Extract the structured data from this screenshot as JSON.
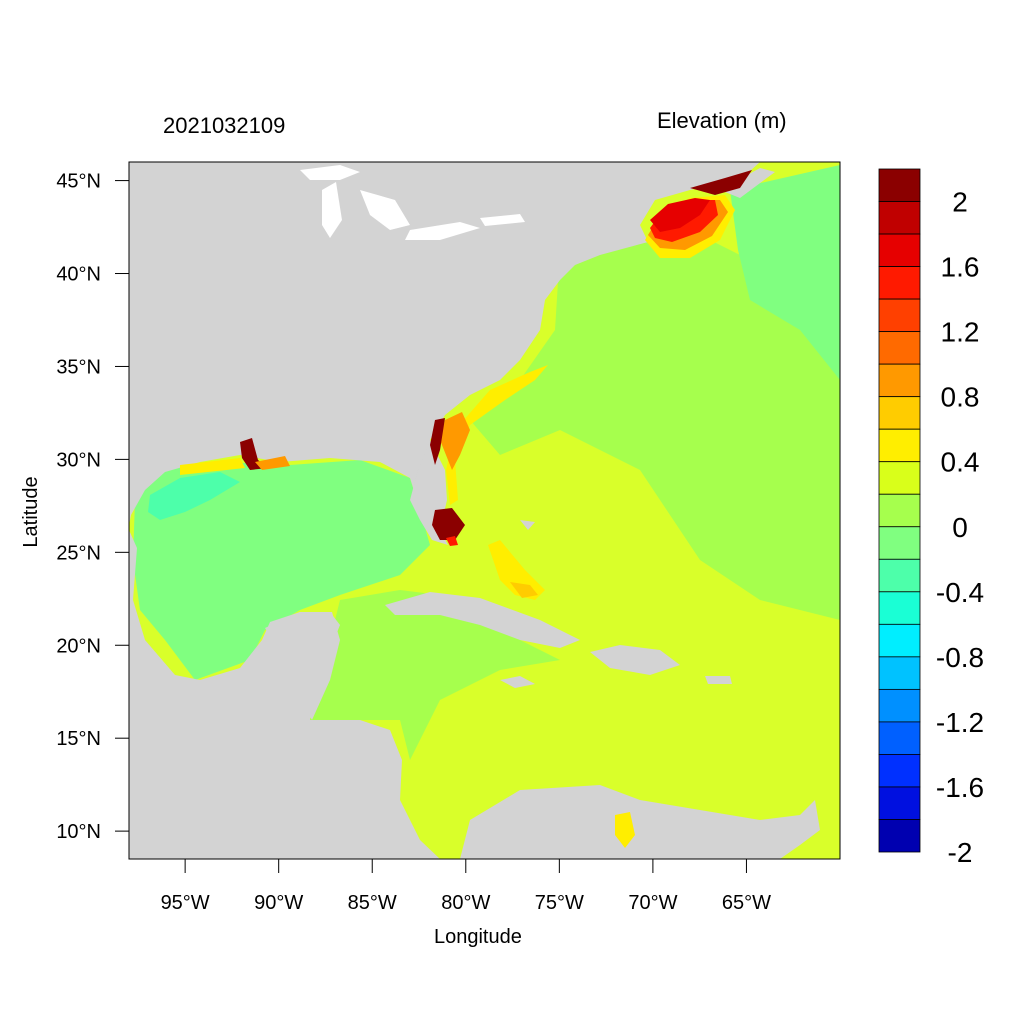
{
  "map": {
    "date_label": "2021032109",
    "variable_title": "Elevation (m)",
    "xlabel": "Longitude",
    "ylabel": "Latitude",
    "lon_range": [
      -98.0,
      -60.0
    ],
    "lat_range": [
      8.5,
      46.0
    ],
    "xticks": [
      {
        "value": -95,
        "label": "95°W"
      },
      {
        "value": -90,
        "label": "90°W"
      },
      {
        "value": -85,
        "label": "85°W"
      },
      {
        "value": -80,
        "label": "80°W"
      },
      {
        "value": -75,
        "label": "75°W"
      },
      {
        "value": -70,
        "label": "70°W"
      },
      {
        "value": -65,
        "label": "65°W"
      }
    ],
    "yticks": [
      {
        "value": 45,
        "label": "45°N"
      },
      {
        "value": 40,
        "label": "40°N"
      },
      {
        "value": 35,
        "label": "35°N"
      },
      {
        "value": 30,
        "label": "30°N"
      },
      {
        "value": 25,
        "label": "25°N"
      },
      {
        "value": 20,
        "label": "20°N"
      },
      {
        "value": 15,
        "label": "15°N"
      },
      {
        "value": 10,
        "label": "10°N"
      }
    ],
    "land_color": "#d3d3d3",
    "colorbar": {
      "colors_top_to_bottom": [
        "#8b0000",
        "#c00000",
        "#e60000",
        "#ff1a00",
        "#ff4000",
        "#ff6a00",
        "#ff9900",
        "#ffcc00",
        "#ffee00",
        "#d9ff1a",
        "#a6ff4d",
        "#80ff80",
        "#4dffaa",
        "#1affd5",
        "#00eeff",
        "#00c2ff",
        "#0090ff",
        "#0060ff",
        "#0030ff",
        "#0010e0",
        "#0000b0"
      ],
      "labels": [
        "2",
        "1.6",
        "1.2",
        "0.8",
        "0.4",
        "0",
        "-0.4",
        "-0.8",
        "-1.2",
        "-1.6",
        "-2"
      ]
    }
  }
}
